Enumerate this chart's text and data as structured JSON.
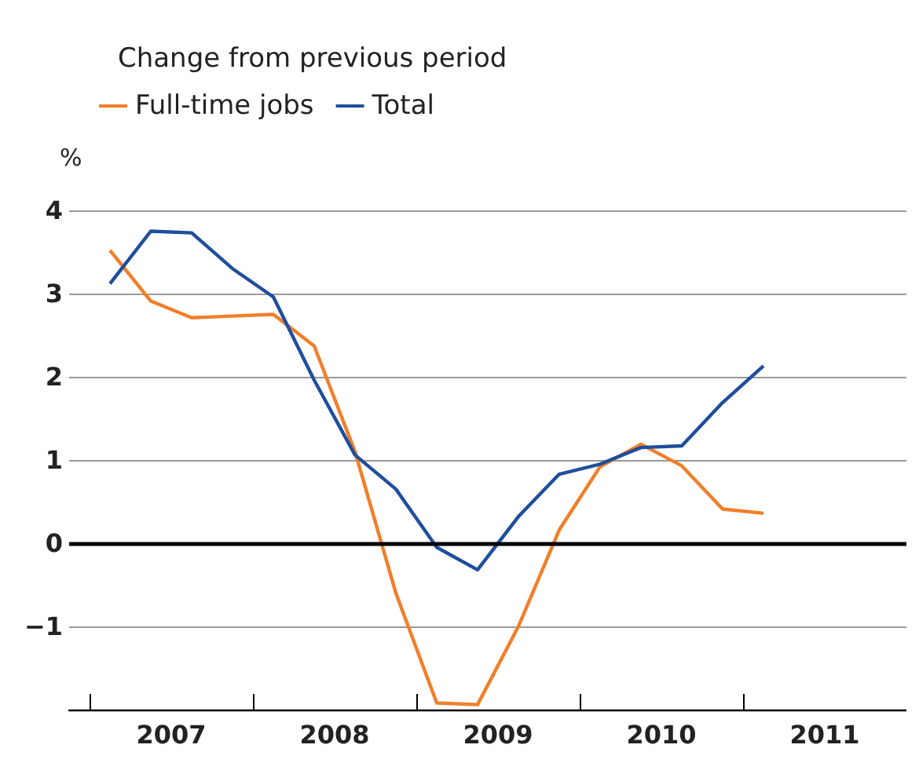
{
  "chart_data": {
    "type": "line",
    "title": "Change from previous period",
    "ylabel": "%",
    "x": [
      2007.125,
      2007.375,
      2007.625,
      2007.875,
      2008.125,
      2008.375,
      2008.625,
      2008.875,
      2009.125,
      2009.375,
      2009.625,
      2009.875,
      2010.125,
      2010.375,
      2010.625,
      2010.875,
      2011.125
    ],
    "series": [
      {
        "name": "Full-time jobs",
        "color": "#f07f2a",
        "values": [
          3.52,
          2.91,
          2.71,
          2.73,
          2.75,
          2.37,
          1.1,
          -0.6,
          -1.92,
          -1.94,
          -1.0,
          0.16,
          0.92,
          1.19,
          0.93,
          0.41,
          0.36
        ]
      },
      {
        "name": "Total",
        "color": "#1f4e9c",
        "values": [
          3.12,
          3.75,
          3.73,
          3.3,
          2.96,
          1.96,
          1.06,
          0.65,
          -0.05,
          -0.32,
          0.32,
          0.83,
          0.95,
          1.15,
          1.17,
          1.69,
          2.13
        ]
      }
    ],
    "xlim": [
      2006.875,
      2012
    ],
    "xticks": [
      {
        "value": 2007,
        "label": null
      },
      {
        "value": 2008,
        "label": null
      },
      {
        "value": 2009,
        "label": null
      },
      {
        "value": 2010,
        "label": null
      },
      {
        "value": 2011,
        "label": null
      },
      {
        "value": 2012,
        "label": null
      },
      {
        "value": 2007.5,
        "label": "2007"
      },
      {
        "value": 2008.5,
        "label": "2008"
      },
      {
        "value": 2009.5,
        "label": "2009"
      },
      {
        "value": 2010.5,
        "label": "2010"
      },
      {
        "value": 2011.5,
        "label": "2011"
      }
    ],
    "ylim": [
      -2,
      4
    ],
    "yticks": [
      {
        "value": -1,
        "label": "−1"
      },
      0,
      1,
      2,
      3,
      4
    ],
    "ref_lines": [
      {
        "axis": "y",
        "value": 0,
        "color": "#000000"
      }
    ],
    "grid": "y",
    "legend": "top left",
    "marker": "none",
    "line_style": "solid"
  }
}
